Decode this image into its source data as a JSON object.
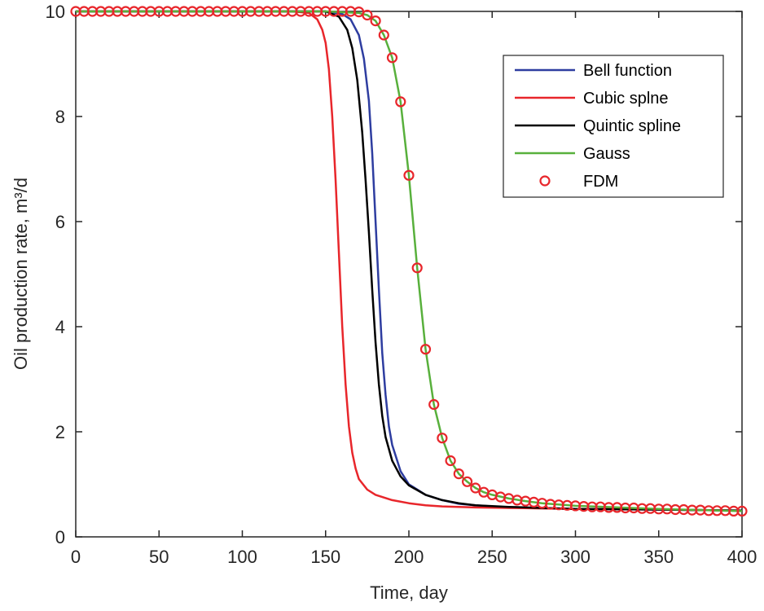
{
  "chart_data": {
    "type": "line",
    "title": "",
    "xlabel": "Time, day",
    "ylabel": "Oil production rate, m³/d",
    "xlim": [
      0,
      400
    ],
    "ylim": [
      0,
      10
    ],
    "xticks": [
      "0",
      "50",
      "100",
      "150",
      "200",
      "250",
      "300",
      "350",
      "400"
    ],
    "yticks": [
      "0",
      "2",
      "4",
      "6",
      "8",
      "10"
    ],
    "grid": false,
    "legend_position": "top-right",
    "series": [
      {
        "name": "Bell function",
        "color": "#2e3da0",
        "style": "line",
        "x": [
          0,
          100,
          150,
          160,
          165,
          170,
          173,
          176,
          178,
          180,
          182,
          184,
          186,
          188,
          190,
          195,
          200,
          210,
          220,
          230,
          240,
          250,
          260,
          280,
          300,
          350,
          400
        ],
        "y": [
          10,
          10,
          10,
          9.95,
          9.85,
          9.55,
          9.1,
          8.3,
          7.3,
          6.0,
          4.7,
          3.5,
          2.7,
          2.1,
          1.75,
          1.25,
          1.0,
          0.8,
          0.7,
          0.63,
          0.6,
          0.58,
          0.56,
          0.55,
          0.53,
          0.52,
          0.5
        ]
      },
      {
        "name": "Cubic splne",
        "color": "#e8262b",
        "style": "line",
        "x": [
          0,
          130,
          140,
          145,
          148,
          150,
          152,
          154,
          156,
          158,
          160,
          162,
          164,
          166,
          168,
          170,
          175,
          180,
          190,
          200,
          210,
          220,
          240,
          260,
          300,
          350,
          400
        ],
        "y": [
          10,
          10,
          9.97,
          9.85,
          9.65,
          9.4,
          8.9,
          8.0,
          6.8,
          5.4,
          4.0,
          2.9,
          2.1,
          1.6,
          1.3,
          1.1,
          0.9,
          0.8,
          0.7,
          0.64,
          0.6,
          0.58,
          0.56,
          0.55,
          0.53,
          0.52,
          0.5
        ]
      },
      {
        "name": "Quintic spline",
        "color": "#000000",
        "style": "line",
        "x": [
          0,
          100,
          150,
          158,
          163,
          166,
          169,
          172,
          174,
          176,
          178,
          180,
          182,
          184,
          186,
          190,
          195,
          200,
          210,
          220,
          230,
          240,
          260,
          280,
          300,
          350,
          400
        ],
        "y": [
          10,
          10,
          10,
          9.9,
          9.65,
          9.3,
          8.7,
          7.7,
          6.8,
          5.8,
          4.7,
          3.7,
          2.9,
          2.3,
          1.9,
          1.45,
          1.15,
          0.98,
          0.8,
          0.7,
          0.64,
          0.6,
          0.57,
          0.55,
          0.53,
          0.52,
          0.5
        ]
      },
      {
        "name": "Gauss",
        "color": "#58b03c",
        "style": "line",
        "x": [
          0,
          150,
          170,
          175,
          180,
          185,
          190,
          195,
          200,
          205,
          210,
          215,
          220,
          225,
          230,
          235,
          240,
          245,
          250,
          260,
          270,
          280,
          300,
          350,
          400
        ],
        "y": [
          10,
          10,
          9.97,
          9.93,
          9.82,
          9.55,
          9.12,
          8.28,
          6.88,
          5.12,
          3.57,
          2.52,
          1.88,
          1.45,
          1.2,
          1.05,
          0.93,
          0.85,
          0.8,
          0.73,
          0.68,
          0.64,
          0.59,
          0.53,
          0.49
        ]
      },
      {
        "name": "FDM",
        "color": "#e8262b",
        "style": "marker",
        "x": [
          0,
          5,
          10,
          15,
          20,
          25,
          30,
          35,
          40,
          45,
          50,
          55,
          60,
          65,
          70,
          75,
          80,
          85,
          90,
          95,
          100,
          105,
          110,
          115,
          120,
          125,
          130,
          135,
          140,
          145,
          150,
          155,
          160,
          165,
          170,
          175,
          180,
          185,
          190,
          195,
          200,
          205,
          210,
          215,
          220,
          225,
          230,
          235,
          240,
          245,
          250,
          255,
          260,
          265,
          270,
          275,
          280,
          285,
          290,
          295,
          300,
          305,
          310,
          315,
          320,
          325,
          330,
          335,
          340,
          345,
          350,
          355,
          360,
          365,
          370,
          375,
          380,
          385,
          390,
          395,
          400
        ],
        "y": [
          10,
          10,
          10,
          10,
          10,
          10,
          10,
          10,
          10,
          10,
          10,
          10,
          10,
          10,
          10,
          10,
          10,
          10,
          10,
          10,
          10,
          10,
          10,
          10,
          10,
          10,
          10,
          10,
          10,
          10,
          10,
          10,
          10,
          10,
          9.99,
          9.93,
          9.82,
          9.55,
          9.12,
          8.28,
          6.88,
          5.12,
          3.57,
          2.52,
          1.88,
          1.45,
          1.2,
          1.05,
          0.93,
          0.85,
          0.8,
          0.76,
          0.73,
          0.7,
          0.68,
          0.66,
          0.64,
          0.62,
          0.61,
          0.6,
          0.59,
          0.58,
          0.57,
          0.57,
          0.56,
          0.56,
          0.55,
          0.55,
          0.54,
          0.54,
          0.53,
          0.53,
          0.52,
          0.52,
          0.51,
          0.51,
          0.5,
          0.5,
          0.5,
          0.49,
          0.49
        ]
      }
    ]
  }
}
